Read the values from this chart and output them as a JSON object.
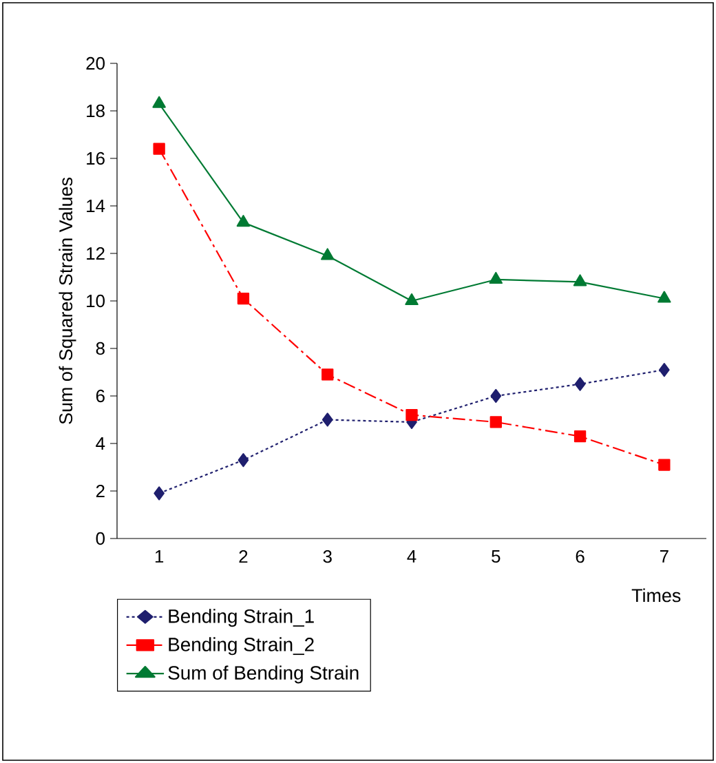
{
  "chart_data": {
    "type": "line",
    "ylabel": "Sum of Squared Strain Values",
    "xlabel": "Times",
    "categories": [
      "1",
      "2",
      "3",
      "4",
      "5",
      "6",
      "7"
    ],
    "ylim": [
      0,
      20
    ],
    "yticks": [
      0,
      2,
      4,
      6,
      8,
      10,
      12,
      14,
      16,
      18,
      20
    ],
    "grid": false,
    "legend": "bottom",
    "series": [
      {
        "name": "Bending Strain_1",
        "color": "#1f1f6e",
        "marker": "diamond",
        "line_style": "dotted",
        "values": [
          1.9,
          3.3,
          5.0,
          4.9,
          6.0,
          6.5,
          7.1
        ]
      },
      {
        "name": "Bending Strain_2",
        "color": "#ff0000",
        "marker": "square",
        "line_style": "dashdot",
        "values": [
          16.4,
          10.1,
          6.9,
          5.2,
          4.9,
          4.3,
          3.1
        ]
      },
      {
        "name": "Sum of Bending Strain",
        "color": "#007a33",
        "marker": "triangle",
        "line_style": "solid",
        "values": [
          18.3,
          13.3,
          11.9,
          10.0,
          10.9,
          10.8,
          10.1
        ]
      }
    ]
  }
}
